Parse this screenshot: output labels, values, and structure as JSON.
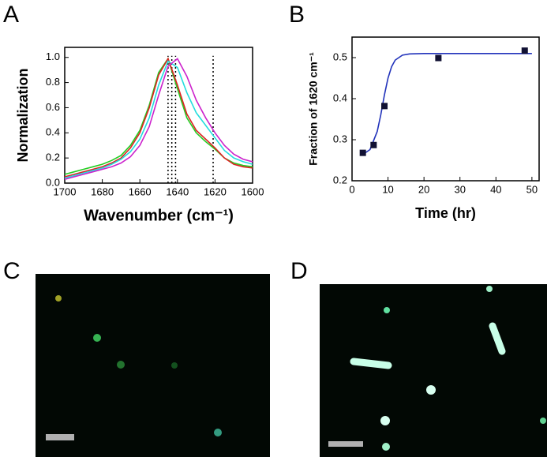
{
  "chart_data": [
    {
      "type": "line",
      "panel": "A",
      "x_label": "Wavenumber (cm⁻¹)",
      "y_label": "Normalization",
      "x": [
        1700,
        1695,
        1690,
        1685,
        1680,
        1675,
        1670,
        1665,
        1660,
        1655,
        1650,
        1645,
        1640,
        1635,
        1630,
        1625,
        1620,
        1615,
        1610,
        1605,
        1600
      ],
      "xlim": [
        1700,
        1600
      ],
      "xticks": [
        1700,
        1680,
        1660,
        1640,
        1620,
        1600
      ],
      "ylim": [
        0,
        1.08
      ],
      "yticks": [
        {
          "value": 0,
          "label": "0.0"
        },
        {
          "value": 0.2,
          "label": "0.2"
        },
        {
          "value": 0.4,
          "label": "0.4"
        },
        {
          "value": 0.6,
          "label": "0.6"
        },
        {
          "value": 0.8,
          "label": "0.8"
        },
        {
          "value": 1,
          "label": "1.0"
        }
      ],
      "markers": [
        1645,
        1643,
        1641,
        1621
      ],
      "series": [
        {
          "color": "#22cc22",
          "values": [
            0.07,
            0.09,
            0.11,
            0.13,
            0.15,
            0.18,
            0.22,
            0.3,
            0.42,
            0.62,
            0.88,
            0.99,
            0.75,
            0.52,
            0.4,
            0.33,
            0.27,
            0.2,
            0.16,
            0.14,
            0.13
          ]
        },
        {
          "color": "#dd2222",
          "values": [
            0.05,
            0.07,
            0.09,
            0.11,
            0.13,
            0.16,
            0.2,
            0.28,
            0.4,
            0.6,
            0.86,
            0.99,
            0.78,
            0.55,
            0.42,
            0.35,
            0.28,
            0.2,
            0.15,
            0.13,
            0.12
          ]
        },
        {
          "color": "#22dddd",
          "values": [
            0.04,
            0.06,
            0.08,
            0.1,
            0.12,
            0.15,
            0.19,
            0.25,
            0.35,
            0.52,
            0.78,
            0.97,
            0.92,
            0.72,
            0.56,
            0.46,
            0.36,
            0.26,
            0.2,
            0.17,
            0.15
          ]
        },
        {
          "color": "#cc22cc",
          "values": [
            0.03,
            0.05,
            0.07,
            0.09,
            0.11,
            0.13,
            0.16,
            0.21,
            0.3,
            0.45,
            0.7,
            0.93,
            0.99,
            0.85,
            0.66,
            0.52,
            0.4,
            0.3,
            0.23,
            0.19,
            0.17
          ]
        }
      ]
    },
    {
      "type": "scatter",
      "panel": "B",
      "x_label": "Time (hr)",
      "y_label": "Fraction of 1620 cm⁻¹",
      "x": [
        3,
        6,
        9,
        24,
        48
      ],
      "values": [
        0.268,
        0.287,
        0.382,
        0.499,
        0.517
      ],
      "color": "#111133",
      "fit": {
        "color": "#2233bb",
        "x": [
          3,
          5,
          7,
          8,
          9,
          10,
          11,
          12,
          14,
          16,
          20,
          30,
          40,
          50
        ],
        "values": [
          0.264,
          0.276,
          0.32,
          0.361,
          0.409,
          0.45,
          0.478,
          0.494,
          0.506,
          0.509,
          0.51,
          0.51,
          0.51,
          0.51
        ]
      },
      "xlim": [
        0,
        52
      ],
      "xticks": [
        0,
        10,
        20,
        30,
        40,
        50
      ],
      "ylim": [
        0.2,
        0.55
      ],
      "yticks": [
        0.2,
        0.3,
        0.4,
        0.5
      ]
    }
  ],
  "images": [
    {
      "panel": "C"
    },
    {
      "panel": "D"
    }
  ]
}
